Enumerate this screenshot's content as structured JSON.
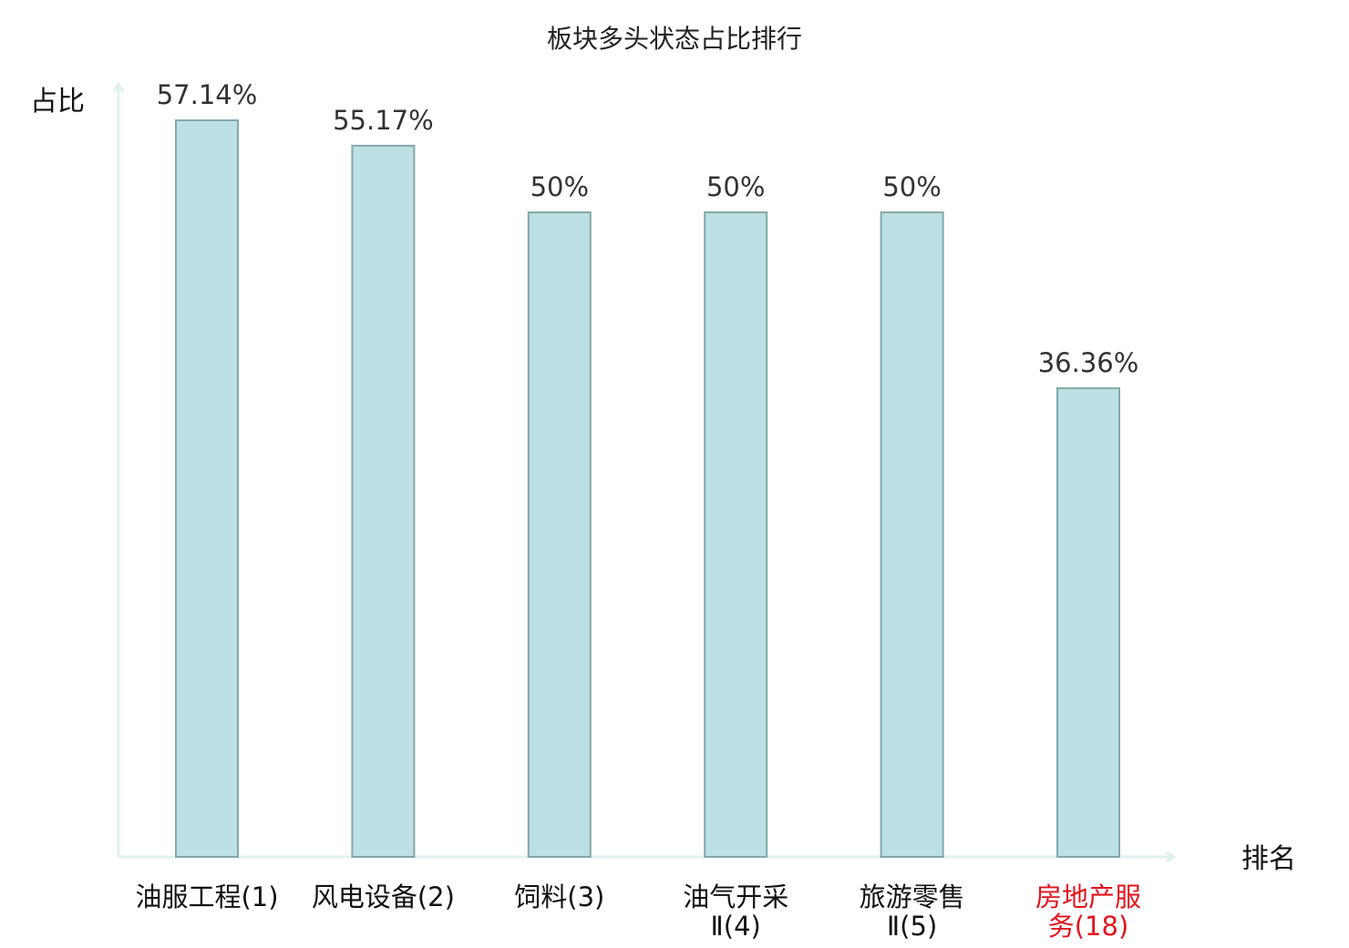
{
  "chart_data": {
    "type": "bar",
    "title": "板块多头状态占比排行",
    "xlabel": "排名",
    "ylabel": "占比",
    "categories": [
      {
        "name": [
          "油服工程",
          "(1)"
        ],
        "highlight": false
      },
      {
        "name": [
          "风电设备",
          "(2)"
        ],
        "highlight": false
      },
      {
        "name": [
          "饲料",
          "(3)"
        ],
        "highlight": false
      },
      {
        "name": [
          "油气开采",
          "Ⅱ(4)"
        ],
        "highlight": false
      },
      {
        "name": [
          "旅游零售",
          "Ⅱ(5)"
        ],
        "highlight": false
      },
      {
        "name": [
          "房地产服",
          "务(18)"
        ],
        "highlight": true
      }
    ],
    "values": [
      57.14,
      55.17,
      50,
      50,
      50,
      36.36
    ],
    "value_labels": [
      "57.14%",
      "55.17%",
      "50%",
      "50%",
      "50%",
      "36.36%"
    ],
    "ylim": [
      0,
      60
    ],
    "grid": false,
    "colors": {
      "bar_fill": "#bce0e3",
      "bar_stroke": "#86a7aa",
      "axis": "#dff2ef",
      "highlight_text": "#e0141e",
      "normal_text": "#111111"
    }
  }
}
